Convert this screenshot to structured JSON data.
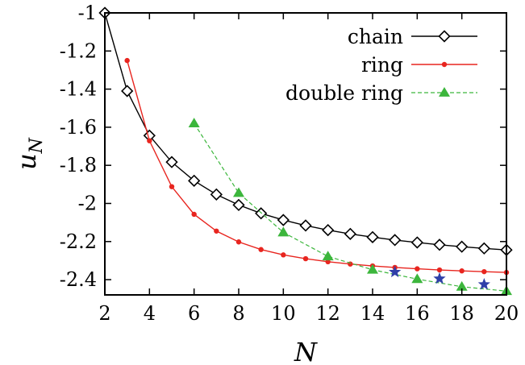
{
  "chart_data": {
    "type": "line",
    "xlabel": "N",
    "ylabel": "u",
    "ylabel_sub": "N",
    "xlim": [
      2,
      20
    ],
    "ylim": [
      -2.48,
      -1.0
    ],
    "xticks": [
      2,
      4,
      6,
      8,
      10,
      12,
      14,
      16,
      18,
      20
    ],
    "yticks": [
      -1.0,
      -1.2,
      -1.4,
      -1.6,
      -1.8,
      -2.0,
      -2.2,
      -2.4
    ],
    "xtick_labels": [
      "2",
      "4",
      "6",
      "8",
      "10",
      "12",
      "14",
      "16",
      "18",
      "20"
    ],
    "ytick_labels": [
      "-1",
      "-1.2",
      "-1.4",
      "-1.6",
      "-1.8",
      "-2",
      "-2.2",
      "-2.4"
    ],
    "legend_position": "top-right",
    "grid": false,
    "series": [
      {
        "name": "chain",
        "color": "#000000",
        "marker": "open-diamond",
        "line": "solid",
        "x": [
          2,
          3,
          4,
          5,
          6,
          7,
          8,
          9,
          10,
          11,
          12,
          13,
          14,
          15,
          16,
          17,
          18,
          19,
          20
        ],
        "y": [
          -1.0,
          -1.41,
          -1.644,
          -1.783,
          -1.881,
          -1.953,
          -2.008,
          -2.052,
          -2.087,
          -2.116,
          -2.14,
          -2.16,
          -2.177,
          -2.192,
          -2.205,
          -2.217,
          -2.227,
          -2.236,
          -2.244
        ]
      },
      {
        "name": "ring",
        "color": "#e8251f",
        "marker": "filled-circle",
        "line": "solid",
        "x": [
          3,
          4,
          5,
          6,
          7,
          8,
          9,
          10,
          11,
          12,
          13,
          14,
          15,
          16,
          17,
          18,
          19,
          20
        ],
        "y": [
          -1.25,
          -1.671,
          -1.912,
          -2.057,
          -2.145,
          -2.202,
          -2.242,
          -2.27,
          -2.29,
          -2.306,
          -2.318,
          -2.328,
          -2.336,
          -2.343,
          -2.349,
          -2.354,
          -2.358,
          -2.362
        ]
      },
      {
        "name": "double ring",
        "color": "#3cb63c",
        "marker": "filled-triangle",
        "line": "dashed",
        "x": [
          6,
          8,
          10,
          12,
          14,
          16,
          18,
          20
        ],
        "y": [
          -1.58,
          -1.945,
          -2.152,
          -2.278,
          -2.348,
          -2.397,
          -2.437,
          -2.46
        ]
      },
      {
        "name": "",
        "color": "#2f3fa8",
        "marker": "filled-star",
        "line": "none",
        "x": [
          15,
          17,
          19
        ],
        "y": [
          -2.36,
          -2.395,
          -2.425
        ]
      }
    ]
  }
}
